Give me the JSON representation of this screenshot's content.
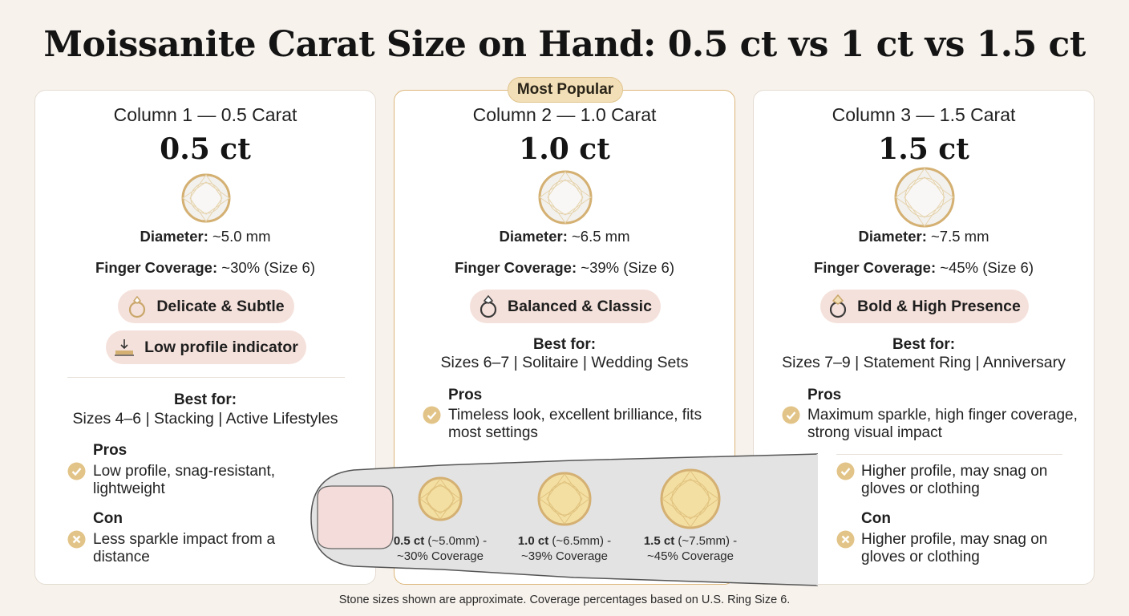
{
  "title": "Moissanite Carat Size on Hand: 0.5 ct vs 1 ct vs 1.5 ct",
  "badge": "Most Popular",
  "columns": [
    {
      "label": "Column 1 — 0.5 Carat",
      "carat": "0.5 ct",
      "diameter_label": "Diameter:",
      "diameter_value": "~5.0 mm",
      "coverage_label": "Finger Coverage:",
      "coverage_value": "~30% (Size 6)",
      "tag": "Delicate & Subtle",
      "tag_icon": "ring-icon",
      "tag2": "Low profile indicator",
      "tag2_icon": "low-profile-icon",
      "best_for_label": "Best for:",
      "best_for": "Sizes 4–6 | Stacking | Active Lifestyles",
      "pros_label": "Pros",
      "pros": "Low profile, snag-resistant, lightweight",
      "con_label": "Con",
      "con": "Less sparkle impact from a distance"
    },
    {
      "label": "Column 2 — 1.0 Carat",
      "carat": "1.0 ct",
      "diameter_label": "Diameter:",
      "diameter_value": "~6.5 mm",
      "coverage_label": "Finger Coverage:",
      "coverage_value": "~39% (Size 6)",
      "tag": "Balanced & Classic",
      "tag_icon": "ring-icon",
      "best_for_label": "Best for:",
      "best_for": "Sizes 6–7 | Solitaire | Wedding Sets",
      "pros_label": "Pros",
      "pros": "Timeless look, excellent brilliance, fits most settings"
    },
    {
      "label": "Column 3 — 1.5 Carat",
      "carat": "1.5 ct",
      "diameter_label": "Diameter:",
      "diameter_value": "~7.5 mm",
      "coverage_label": "Finger Coverage:",
      "coverage_value": "~45% (Size 6)",
      "tag": "Bold & High Presence",
      "tag_icon": "ring-icon",
      "best_for_label": "Best for:",
      "best_for": "Sizes 7–9 | Statement Ring | Anniversary",
      "pros_label": "Pros",
      "pros": "Maximum sparkle, high finger coverage, strong visual impact",
      "pros2": "Higher profile, may snag on gloves or clothing",
      "con_label": "Con",
      "con": "Higher profile, may snag on gloves or clothing"
    }
  ],
  "finger_stones": [
    {
      "carat": "0.5 ct",
      "detail": "(~5.0mm) -",
      "coverage": "~30% Coverage"
    },
    {
      "carat": "1.0 ct",
      "detail": "(~6.5mm) -",
      "coverage": "~39% Coverage"
    },
    {
      "carat": "1.5 ct",
      "detail": "(~7.5mm) -",
      "coverage": "~45% Coverage"
    }
  ],
  "footnote": "Stone sizes shown are approximate. Coverage percentages based on U.S. Ring Size 6.",
  "colors": {
    "gold": "#d4b072",
    "check": "#e2c488",
    "pill": "#f5e1db",
    "finger": "#e3e3e3",
    "nail": "#f3dcd9"
  }
}
